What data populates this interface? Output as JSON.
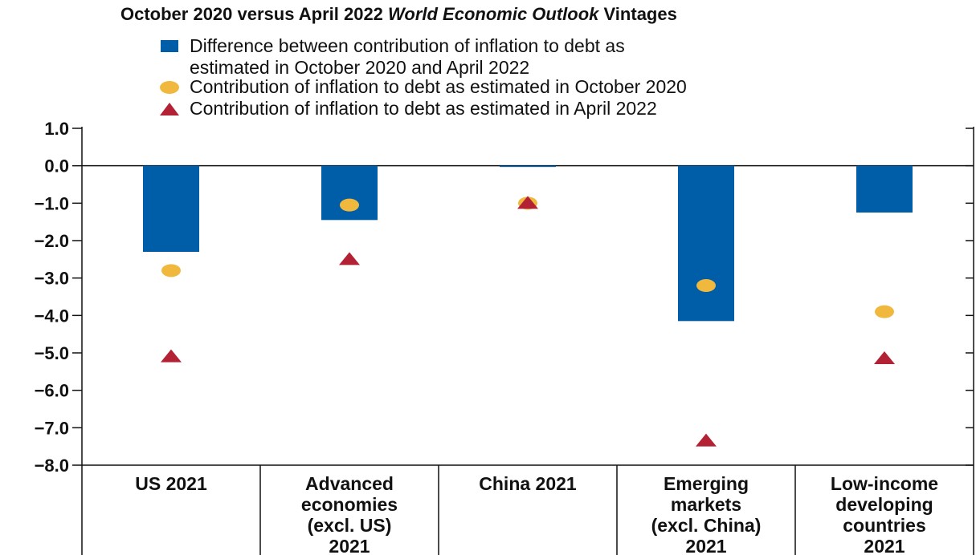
{
  "title": {
    "prefix": "October 2020 versus April 2022 ",
    "italic": "World Economic Outlook",
    "suffix": " Vintages"
  },
  "legend": [
    {
      "key": "difference",
      "marker": "square",
      "color": "#005EA8",
      "lines": [
        "Difference between contribution of inflation to debt as",
        "estimated in October 2020 and April 2022"
      ]
    },
    {
      "key": "oct2020",
      "marker": "circle",
      "color": "#F1B83E",
      "lines": [
        "Contribution of inflation to debt as estimated in October 2020"
      ]
    },
    {
      "key": "apr2022",
      "marker": "triangle",
      "color": "#B32234",
      "lines": [
        "Contribution of inflation to debt as estimated in April 2022"
      ]
    }
  ],
  "chart_data": {
    "type": "bar",
    "title": "October 2020 versus April 2022 World Economic Outlook Vintages",
    "categories": [
      [
        "US 2021"
      ],
      [
        "Advanced",
        "economies",
        "(excl. US)",
        "2021"
      ],
      [
        "China 2021"
      ],
      [
        "Emerging",
        "markets",
        "(excl. China)",
        "2021"
      ],
      [
        "Low-income",
        "developing",
        "countries",
        "2021"
      ]
    ],
    "series": [
      {
        "name": "Difference between contribution of inflation to debt as estimated in October 2020 and April 2022",
        "kind": "bar",
        "color": "#005EA8",
        "values": [
          -2.3,
          -1.45,
          0.0,
          -4.15,
          -1.25
        ]
      },
      {
        "name": "Contribution of inflation to debt as estimated in October 2020",
        "kind": "circle",
        "color": "#F1B83E",
        "values": [
          -2.8,
          -1.05,
          -1.0,
          -3.2,
          -3.9
        ]
      },
      {
        "name": "Contribution of inflation to debt as estimated in April 2022",
        "kind": "triangle",
        "color": "#B32234",
        "values": [
          -5.1,
          -2.5,
          -1.0,
          -7.35,
          -5.15
        ]
      }
    ],
    "ylim": [
      -8.0,
      1.0
    ],
    "yticks": [
      "1.0",
      "0.0",
      "−1.0",
      "−2.0",
      "−3.0",
      "−4.0",
      "−5.0",
      "−6.0",
      "−7.0",
      "−8.0"
    ],
    "ytick_values": [
      1,
      0,
      -1,
      -2,
      -3,
      -4,
      -5,
      -6,
      -7,
      -8
    ],
    "legend_position": "top",
    "grid": false
  }
}
